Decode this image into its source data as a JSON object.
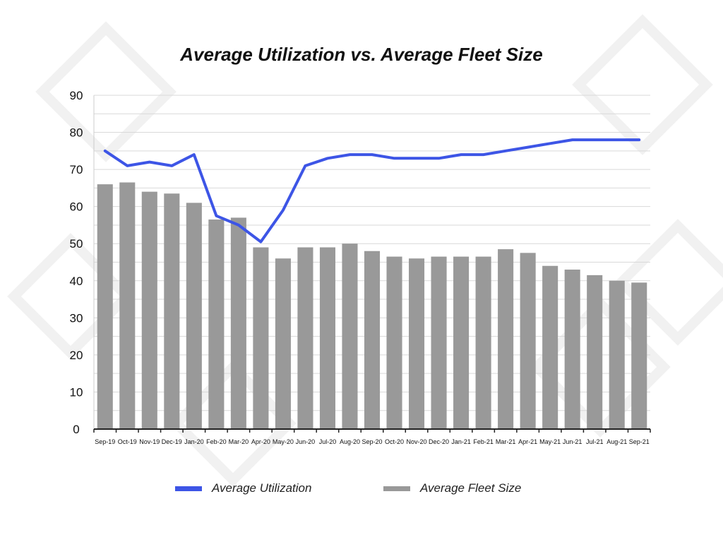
{
  "chart_data": {
    "type": "bar",
    "title": "Average Utilization vs. Average Fleet Size",
    "categories": [
      "Sep-19",
      "Oct-19",
      "Nov-19",
      "Dec-19",
      "Jan-20",
      "Feb-20",
      "Mar-20",
      "Apr-20",
      "May-20",
      "Jun-20",
      "Jul-20",
      "Aug-20",
      "Sep-20",
      "Oct-20",
      "Nov-20",
      "Dec-20",
      "Jan-21",
      "Feb-21",
      "Mar-21",
      "Apr-21",
      "May-21",
      "Jun-21",
      "Jul-21",
      "Aug-21",
      "Sep-21"
    ],
    "series": [
      {
        "name": "Average Fleet Size",
        "type": "bar",
        "color": "#999999",
        "values": [
          66,
          66.5,
          64,
          63.5,
          61,
          56.5,
          57,
          49,
          46,
          49,
          49,
          50,
          48,
          46.5,
          46,
          46.5,
          46.5,
          46.5,
          48.5,
          47.5,
          44,
          43,
          41.5,
          40,
          39.5
        ]
      },
      {
        "name": "Average Utilization",
        "type": "line",
        "color": "#3d55e6",
        "values": [
          75,
          71,
          72,
          71,
          74,
          57.5,
          55,
          50.5,
          59,
          71,
          73,
          74,
          74,
          73,
          73,
          73,
          74,
          74,
          75,
          76,
          77,
          78,
          78,
          78,
          78
        ]
      }
    ],
    "ylim": [
      0,
      90
    ],
    "yticks": [
      0,
      10,
      20,
      30,
      40,
      50,
      60,
      70,
      80,
      90
    ],
    "grid": true,
    "legend_position": "bottom"
  }
}
